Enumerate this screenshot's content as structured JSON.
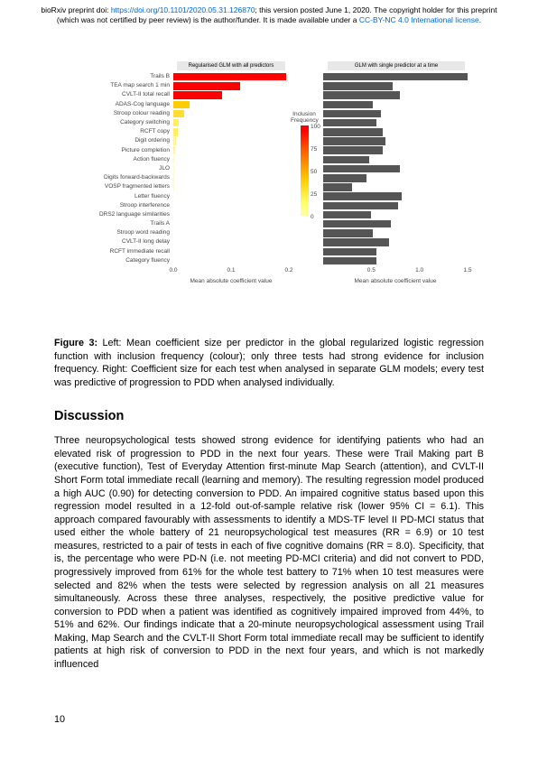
{
  "preprint": {
    "prefix": "bioRxiv preprint doi: ",
    "doi_url": "https://doi.org/10.1101/2020.05.31.126870",
    "mid": "; this version posted June 1, 2020. The copyright holder for this preprint (which was not certified by peer review) is the author/funder. It is made available under a ",
    "license": "CC-BY-NC 4.0 International license",
    "suffix": "."
  },
  "chart": {
    "title_left": "Regularised GLM with all predictors",
    "title_right": "GLM with single predictor at a time",
    "labels": [
      "Trails B",
      "TEA map search 1 min",
      "CVLT-II total recall",
      "ADAS-Cog language",
      "Stroop colour reading",
      "Category switching",
      "RCFT copy",
      "Digit ordering",
      "Picture completion",
      "Action fluency",
      "JLO",
      "Digits forward-backwards",
      "VOSP fragmented letters",
      "Letter fluency",
      "Stroop interference",
      "DRS2 language similarities",
      "Trails A",
      "Stroop word reading",
      "CVLT-II long delay",
      "RCFT immediate recall",
      "Category fluency"
    ],
    "left": {
      "values": [
        0.195,
        0.115,
        0.085,
        0.028,
        0.018,
        0.01,
        0.008,
        0.005,
        0.003,
        0.002,
        0.001,
        0.001,
        0.001,
        0,
        0,
        0,
        0,
        0,
        0,
        0,
        0
      ],
      "colors": [
        "#ff0000",
        "#ff0000",
        "#ff0000",
        "#ffcc00",
        "#ffdd33",
        "#ffee66",
        "#ffee66",
        "#fff599",
        "#fff599",
        "#fffacc",
        "#fffacc",
        "#fffacc",
        "#fffacc",
        "#ffffff",
        "#ffffff",
        "#ffffff",
        "#ffffff",
        "#ffffff",
        "#ffffff",
        "#ffffff",
        "#ffffff"
      ],
      "xmax": 0.2,
      "ticks": [
        0.0,
        0.1,
        0.2
      ],
      "tick_labels": [
        "0.0",
        "0.1",
        "0.2"
      ],
      "axis_label": "Mean absolute coefficient value"
    },
    "right": {
      "values": [
        1.5,
        0.72,
        0.8,
        0.52,
        0.6,
        0.55,
        0.62,
        0.65,
        0.62,
        0.48,
        0.8,
        0.45,
        0.3,
        0.82,
        0.78,
        0.5,
        0.7,
        0.52,
        0.68,
        0.55,
        0.55
      ],
      "color": "#555555",
      "xmax": 1.5,
      "ticks": [
        0.5,
        1.0,
        1.5
      ],
      "tick_labels": [
        "0.5",
        "1.0",
        "1.5"
      ],
      "axis_label": "Mean absolute coefficient value"
    },
    "colorbar": {
      "title": "Inclusion\nFrequency",
      "ticks": [
        100,
        75,
        50,
        25,
        0
      ]
    }
  },
  "caption": {
    "label": "Figure 3:",
    "text": " Left: Mean coefficient size per predictor in the global regularized logistic regression function with inclusion frequency (colour); only three tests had strong evidence for inclusion frequency. Right: Coefficient size for each test when analysed in separate GLM models; every test was predictive of progression to PDD when analysed individually."
  },
  "discussion": {
    "heading": "Discussion",
    "body": "Three neuropsychological tests showed strong evidence for identifying patients who had an elevated risk of progression to PDD in the next four years. These were Trail Making part B (executive function), Test of Everyday Attention first-minute Map Search (attention), and CVLT-II Short Form total immediate recall (learning and memory). The resulting regression model produced a high AUC (0.90) for detecting conversion to PDD. An impaired cognitive status based upon this regression model resulted in a 12-fold out-of-sample relative risk (lower 95% CI = 6.1). This approach compared favourably with assessments to identify a MDS-TF level II PD-MCI status that used either the whole battery of 21 neuropsychological test measures (RR = 6.9) or 10 test measures, restricted to a pair of tests in each of five cognitive domains (RR = 8.0). Specificity, that is, the percentage who were PD-N (i.e. not meeting PD-MCI criteria) and did not convert to PDD, progressively improved from 61% for the whole test battery to 71% when 10 test measures were selected and 82% when the tests were selected by regression analysis on all 21 measures simultaneously. Across these three analyses, respectively, the positive predictive value for conversion to PDD when a patient was identified as cognitively impaired improved from 44%, to 51% and 62%. Our findings indicate that a 20-minute neuropsychological assessment using Trail Making, Map Search and the CVLT-II Short Form total immediate recall may be sufficient to identify patients at high risk of conversion to PDD in the next four years, and which is not markedly influenced"
  },
  "page_number": "10"
}
